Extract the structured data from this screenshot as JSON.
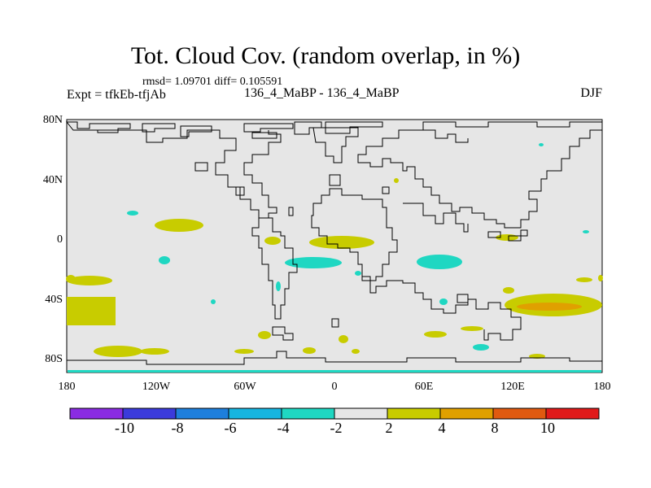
{
  "title": "Tot. Cloud Cov. (random overlap, in %)",
  "stats_line": "rmsd= 1.09701 diff= 0.105591",
  "expt_label": "Expt = tfkEb-tfjAb",
  "case_label": "136_4_MaBP - 136_4_MaBP",
  "season": "DJF",
  "map": {
    "lon_ticks": [
      "180",
      "120W",
      "60W",
      "0",
      "60E",
      "120E",
      "180"
    ],
    "lat_ticks": [
      "80N",
      "40N",
      "0",
      "40S",
      "80S"
    ],
    "background_color": "#e6e6e6"
  },
  "colorbar": {
    "labels": [
      "-10",
      "-8",
      "-6",
      "-4",
      "-2",
      "2",
      "4",
      "8",
      "10"
    ],
    "colors": [
      "#8a2be2",
      "#3b3bdb",
      "#1e7fdc",
      "#17b5e0",
      "#1fd7c2",
      "#e6e6e6",
      "#c8cc00",
      "#e0a000",
      "#e05a10",
      "#e01a1a"
    ]
  }
}
